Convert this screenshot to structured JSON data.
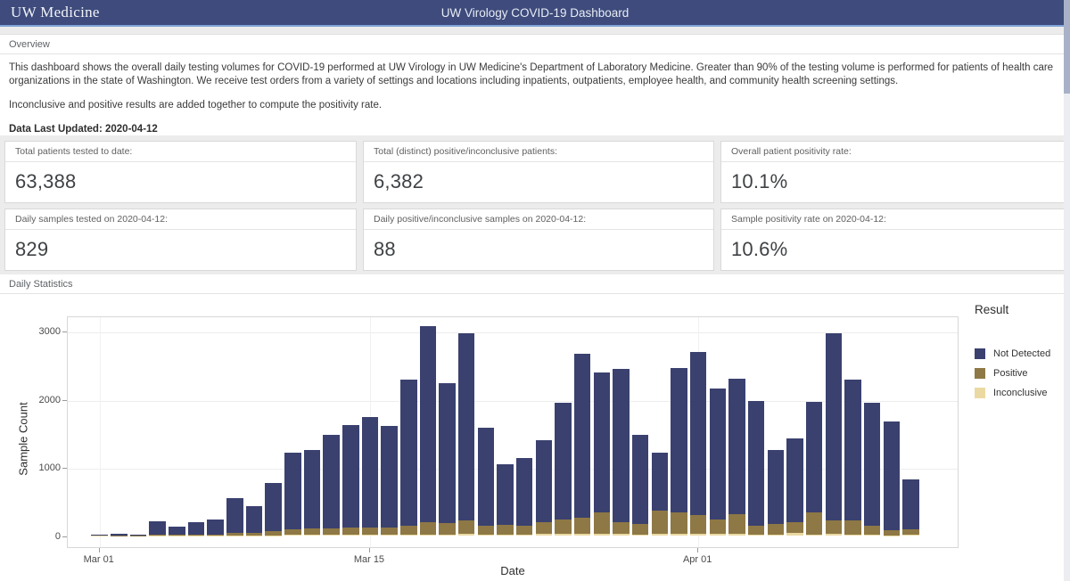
{
  "header": {
    "logo": "UW Medicine",
    "title": "UW Virology COVID-19 Dashboard"
  },
  "overview": {
    "section_label": "Overview",
    "paragraph1": "This dashboard shows the overall daily testing volumes for COVID-19 performed at UW Virology in UW Medicine's Department of Laboratory Medicine. Greater than 90% of the testing volume is performed for patients of health care organizations in the state of Washington. We receive test orders from a variety of settings and locations including inpatients, outpatients, employee health, and community health screening settings.",
    "paragraph2": "Inconclusive and positive results are added together to compute the positivity rate.",
    "last_updated": "Data Last Updated: 2020-04-12"
  },
  "stats": {
    "cards": [
      {
        "label": "Total patients tested to date:",
        "value": "63,388"
      },
      {
        "label": "Total (distinct) positive/inconclusive patients:",
        "value": "6,382"
      },
      {
        "label": "Overall patient positivity rate:",
        "value": "10.1%"
      },
      {
        "label": "Daily samples tested on 2020-04-12:",
        "value": "829"
      },
      {
        "label": "Daily positive/inconclusive samples on 2020-04-12:",
        "value": "88"
      },
      {
        "label": "Sample positivity rate on 2020-04-12:",
        "value": "10.6%"
      }
    ]
  },
  "daily_statistics": {
    "section_label": "Daily Statistics"
  },
  "chart_data": {
    "type": "bar",
    "stacked": true,
    "title": "",
    "xlabel": "Date",
    "ylabel": "Sample Count",
    "ylim": [
      0,
      3225
    ],
    "grid": true,
    "y_ticks": [
      0,
      1000,
      2000,
      3000
    ],
    "x_ticks": [
      {
        "index": 0,
        "label": "Mar 01"
      },
      {
        "index": 14,
        "label": "Mar 15"
      },
      {
        "index": 31,
        "label": "Apr 01"
      }
    ],
    "legend": {
      "title": "Result",
      "position": "right"
    },
    "categories": [
      "Mar 01",
      "Mar 02",
      "Mar 03",
      "Mar 04",
      "Mar 05",
      "Mar 06",
      "Mar 07",
      "Mar 08",
      "Mar 09",
      "Mar 10",
      "Mar 11",
      "Mar 12",
      "Mar 13",
      "Mar 14",
      "Mar 15",
      "Mar 16",
      "Mar 17",
      "Mar 18",
      "Mar 19",
      "Mar 20",
      "Mar 21",
      "Mar 22",
      "Mar 23",
      "Mar 24",
      "Mar 25",
      "Mar 26",
      "Mar 27",
      "Mar 28",
      "Mar 29",
      "Mar 30",
      "Mar 31",
      "Apr 01",
      "Apr 02",
      "Apr 03",
      "Apr 04",
      "Apr 05",
      "Apr 06",
      "Apr 07",
      "Apr 08",
      "Apr 09",
      "Apr 10",
      "Apr 11",
      "Apr 12"
    ],
    "series": [
      {
        "name": "Not Detected",
        "color": "#3a416f",
        "values": [
          12,
          28,
          8,
          193,
          120,
          185,
          214,
          505,
          395,
          705,
          1125,
          1160,
          1370,
          1500,
          1610,
          1490,
          2140,
          2880,
          2050,
          2740,
          1430,
          880,
          990,
          1200,
          1710,
          2410,
          2050,
          2240,
          1310,
          850,
          2110,
          2390,
          1920,
          1990,
          1830,
          1090,
          1240,
          1620,
          2750,
          2060,
          1800,
          1590,
          741
        ]
      },
      {
        "name": "Positive",
        "color": "#8e7845",
        "values": [
          2,
          2,
          2,
          10,
          8,
          8,
          13,
          40,
          30,
          60,
          85,
          90,
          100,
          110,
          110,
          110,
          140,
          180,
          170,
          200,
          140,
          150,
          130,
          180,
          220,
          240,
          320,
          180,
          160,
          340,
          320,
          280,
          220,
          290,
          130,
          160,
          150,
          330,
          200,
          210,
          140,
          75,
          80
        ]
      },
      {
        "name": "Inconclusive",
        "color": "#ead9a2",
        "values": [
          1,
          0,
          0,
          2,
          2,
          2,
          3,
          5,
          5,
          5,
          10,
          10,
          10,
          10,
          10,
          10,
          10,
          10,
          10,
          20,
          10,
          10,
          10,
          20,
          20,
          20,
          20,
          20,
          10,
          30,
          20,
          20,
          20,
          20,
          10,
          10,
          40,
          10,
          20,
          10,
          10,
          5,
          8
        ]
      }
    ]
  }
}
